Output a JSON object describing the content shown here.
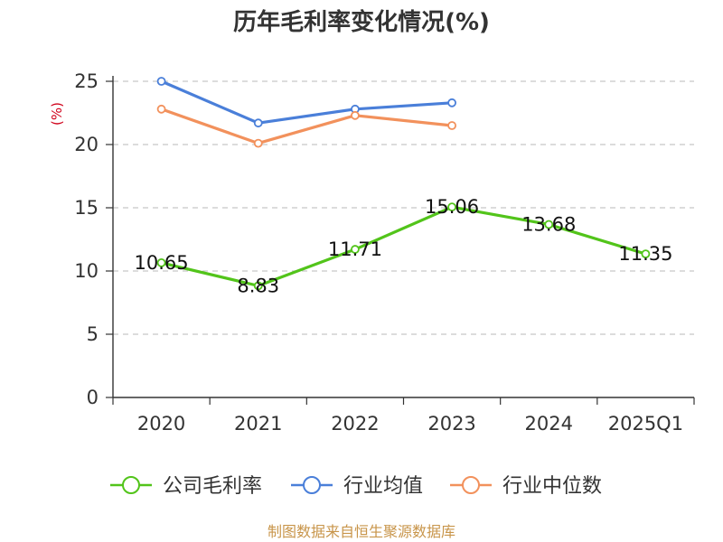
{
  "chart_data": {
    "type": "line",
    "title": "历年毛利率变化情况(%)",
    "ylabel": "(%)",
    "categories": [
      "2020",
      "2021",
      "2022",
      "2023",
      "2024",
      "2025Q1"
    ],
    "yticks": [
      0,
      5,
      10,
      15,
      20,
      25
    ],
    "ylim": [
      0,
      25
    ],
    "grid": true,
    "legend_position": "bottom",
    "series": [
      {
        "name": "公司毛利率",
        "color": "#52c41a",
        "values": [
          10.65,
          8.83,
          11.71,
          15.06,
          13.68,
          11.35
        ],
        "labels": [
          "10.65",
          "8.83",
          "11.71",
          "15.06",
          "13.68",
          "11.35"
        ]
      },
      {
        "name": "行业均值",
        "color": "#4a7fd9",
        "values": [
          25.0,
          21.7,
          22.8,
          23.3,
          null,
          null
        ]
      },
      {
        "name": "行业中位数",
        "color": "#f2915c",
        "values": [
          22.8,
          20.1,
          22.3,
          21.5,
          null,
          null
        ]
      }
    ]
  },
  "footer": {
    "source": "制图数据来自恒生聚源数据库"
  }
}
